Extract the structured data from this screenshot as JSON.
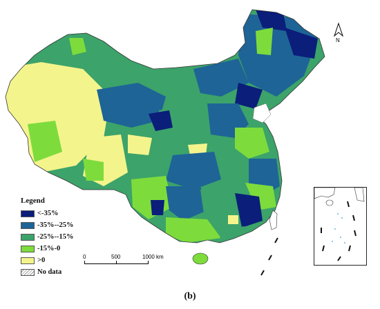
{
  "legend": {
    "title": "Legend",
    "items": [
      {
        "label": "<-35%",
        "color": "#0a1e7a"
      },
      {
        "label": "-35%--25%",
        "color": "#1e6496"
      },
      {
        "label": "-25%--15%",
        "color": "#3ca36a"
      },
      {
        "label": "-15%-0",
        "color": "#7ddc3c"
      },
      {
        "label": ">0",
        "color": "#f4f48c"
      },
      {
        "label": "No data",
        "color": "#ffffff"
      }
    ]
  },
  "scale": {
    "label_0": "0",
    "label_500": "500",
    "label_1000": "1000 km"
  },
  "north_label": "N",
  "caption": "(b)"
}
